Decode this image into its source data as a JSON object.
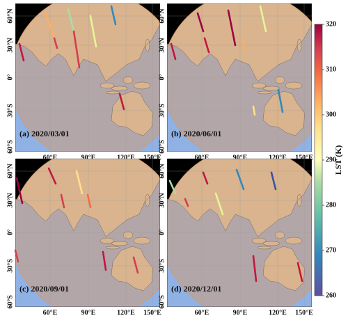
{
  "panels": [
    {
      "label": "(a) 2020/03/01"
    },
    {
      "label": "(b) 2020/06/01"
    },
    {
      "label": "(c) 2020/09/01"
    },
    {
      "label": "(d) 2020/12/01"
    }
  ],
  "lat_ticks": [
    "60°N",
    "30°N",
    "0°",
    "30°S",
    "60°S"
  ],
  "lon_ticks": [
    "60°E",
    "90°E",
    "120°E",
    "150°E"
  ],
  "colorbar": {
    "label": "LST (K)",
    "lim": [
      260,
      320
    ],
    "ticks": [
      260,
      270,
      280,
      290,
      300,
      310,
      320
    ]
  }
}
